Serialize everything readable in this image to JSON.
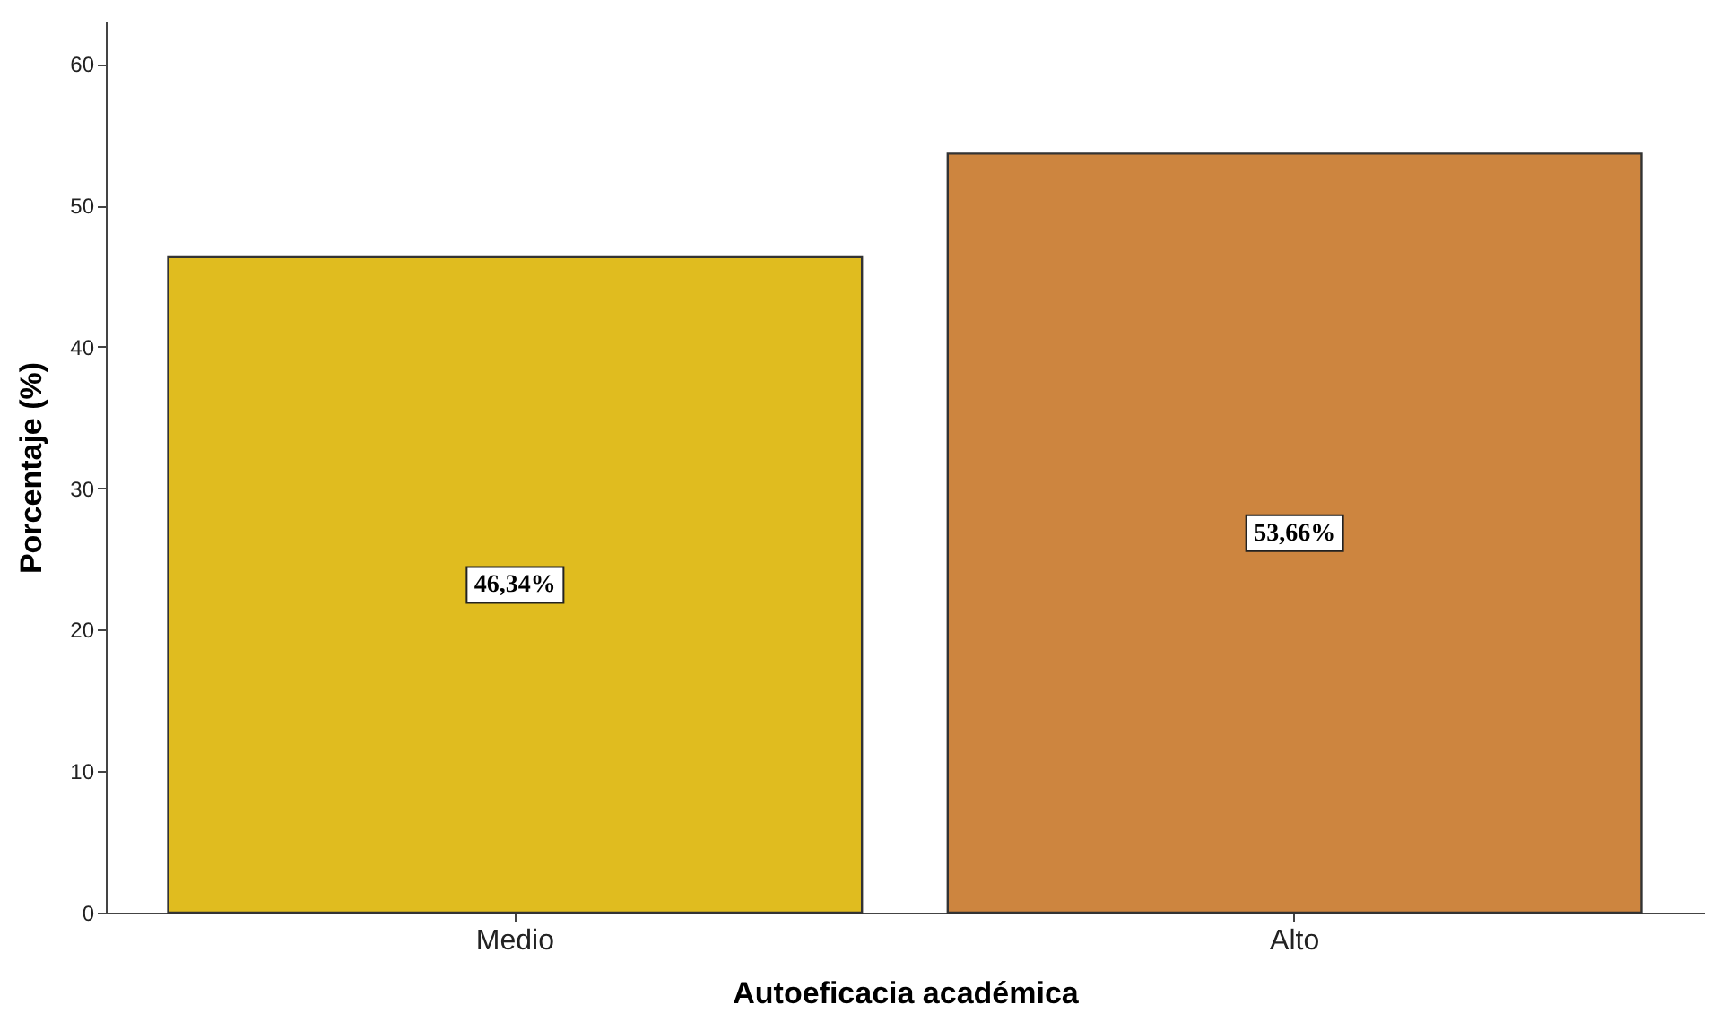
{
  "chart_data": {
    "type": "bar",
    "xlabel": "Autoeficacia académica",
    "ylabel": "Porcentaje (%)",
    "categories": [
      "Medio",
      "Alto"
    ],
    "values": [
      46.34,
      53.66
    ],
    "colors": [
      "#e0bc1f",
      "#cd853f"
    ],
    "value_labels": [
      "46,34%",
      "53,66%"
    ],
    "ylim": [
      0,
      63
    ],
    "yticks": [
      0,
      10,
      20,
      30,
      40,
      50,
      60
    ],
    "grid": false
  }
}
